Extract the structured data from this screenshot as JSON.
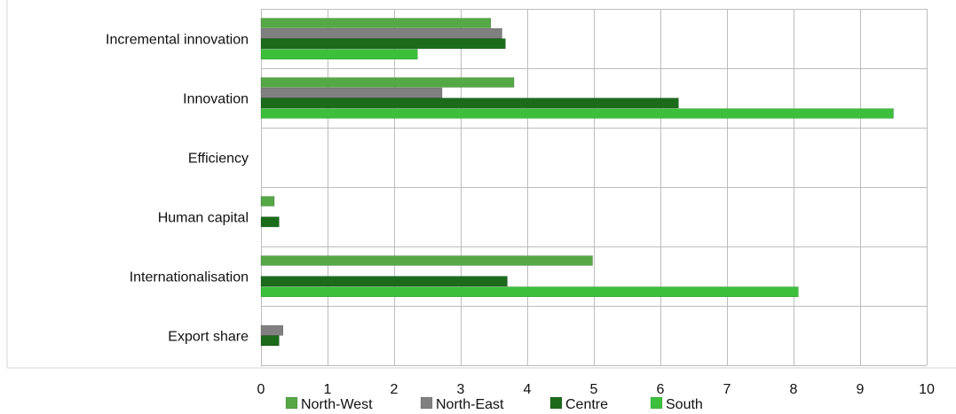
{
  "chart_data": {
    "type": "bar",
    "orientation": "horizontal",
    "categories": [
      "Incremental innovation",
      "Innovation",
      "Efficiency",
      "Human capital",
      "Internationalisation",
      "Export share"
    ],
    "series": [
      {
        "name": "North-West",
        "color": "#55a845",
        "values": [
          3.45,
          3.8,
          null,
          0.2,
          4.98,
          null
        ]
      },
      {
        "name": "North-East",
        "color": "#808080",
        "values": [
          3.62,
          2.72,
          null,
          null,
          null,
          0.33
        ]
      },
      {
        "name": "Centre",
        "color": "#1b6b1b",
        "values": [
          3.67,
          6.27,
          null,
          0.27,
          3.7,
          0.27
        ]
      },
      {
        "name": "South",
        "color": "#3cc03c",
        "values": [
          2.35,
          9.5,
          null,
          null,
          8.07,
          null
        ]
      }
    ],
    "xlim": [
      0,
      10
    ],
    "xticks": [
      "0",
      "1",
      "2",
      "3",
      "4",
      "5",
      "6",
      "7",
      "8",
      "9",
      "10"
    ],
    "grid": true,
    "legend_position": "bottom"
  }
}
